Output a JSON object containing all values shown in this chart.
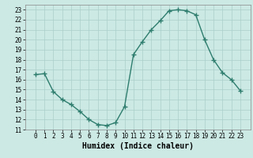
{
  "x": [
    0,
    1,
    2,
    3,
    4,
    5,
    6,
    7,
    8,
    9,
    10,
    11,
    12,
    13,
    14,
    15,
    16,
    17,
    18,
    19,
    20,
    21,
    22,
    23
  ],
  "y": [
    16.5,
    16.6,
    14.8,
    14.0,
    13.5,
    12.8,
    12.0,
    11.5,
    11.4,
    11.7,
    13.3,
    18.5,
    19.8,
    21.0,
    21.9,
    22.9,
    23.0,
    22.9,
    22.5,
    20.0,
    18.0,
    16.7,
    16.0,
    14.9
  ],
  "line_color": "#2e7d6e",
  "marker": "+",
  "markersize": 4,
  "markeredgewidth": 1.0,
  "bg_color": "#cce9e4",
  "grid_color": "#aacfc9",
  "xlabel": "Humidex (Indice chaleur)",
  "xlabel_fontsize": 7,
  "ylim": [
    11,
    23.5
  ],
  "yticks": [
    11,
    12,
    13,
    14,
    15,
    16,
    17,
    18,
    19,
    20,
    21,
    22,
    23
  ],
  "xticks": [
    0,
    1,
    2,
    3,
    4,
    5,
    6,
    7,
    8,
    9,
    10,
    11,
    12,
    13,
    14,
    15,
    16,
    17,
    18,
    19,
    20,
    21,
    22,
    23
  ],
  "tick_fontsize": 5.5,
  "linewidth": 1.0
}
